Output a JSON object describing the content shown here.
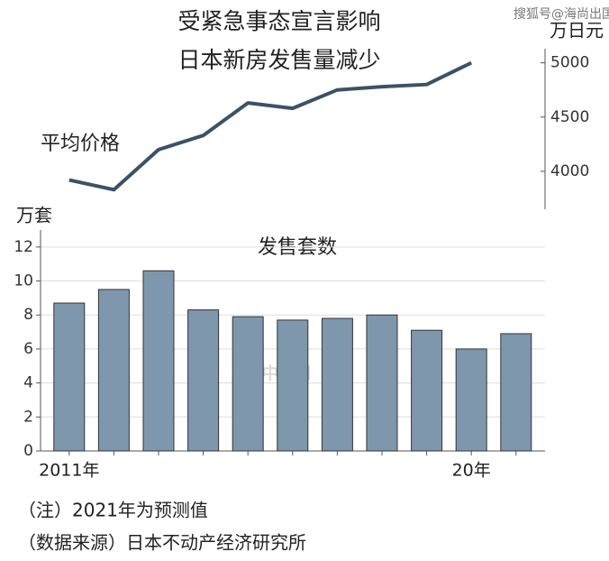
{
  "title": [
    "受紧急事态宣言影响",
    "日本新房发售量减少"
  ],
  "notes": [
    "（注）2021年为预测值",
    "（数据来源）日本不动产经济研究所"
  ],
  "watermarks": [
    "搜狐号@海尚出国移民",
    "日经中文网"
  ],
  "chart_data": [
    {
      "type": "line",
      "label": "平均价格",
      "y2_label": "万日元",
      "color": "#3b5266",
      "values": [
        3920,
        3830,
        4200,
        4330,
        4630,
        4580,
        4750,
        4780,
        4800,
        5000,
        null
      ],
      "y2lim": [
        3650,
        5130
      ],
      "y2ticks": [
        4000,
        4500,
        5000
      ]
    },
    {
      "type": "bar",
      "title": "发售套数",
      "y_label": "万套",
      "color": "#7f97ad",
      "grid": true,
      "categories": [
        "2011年",
        null,
        null,
        null,
        null,
        null,
        null,
        null,
        null,
        "20年",
        null
      ],
      "values": [
        8.7,
        9.5,
        10.6,
        8.3,
        7.9,
        7.7,
        7.8,
        8.0,
        7.1,
        6.0,
        6.9
      ],
      "ylim": [
        0,
        13
      ],
      "yticks": [
        0,
        2,
        4,
        6,
        8,
        10,
        12
      ]
    }
  ]
}
